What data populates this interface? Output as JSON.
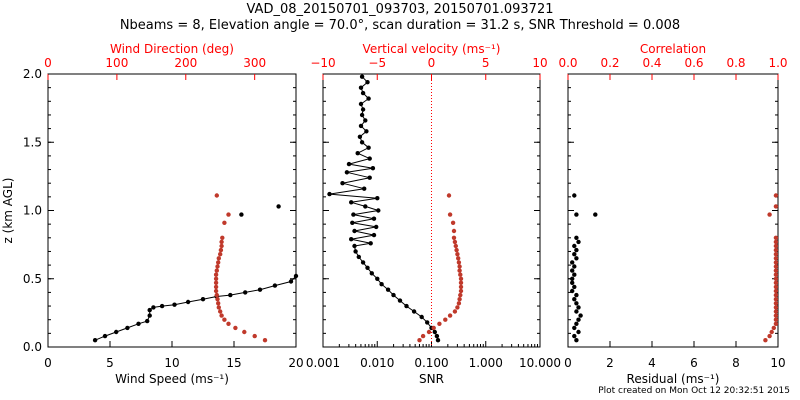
{
  "header": {
    "title_line1": "VAD_08_20150701_093703, 20150701.093721",
    "title_line2": "Nbeams = 8, Elevation angle = 70.0°, scan duration = 31.2 s, SNR Threshold = 0.008"
  },
  "footer": {
    "text": "Plot created on Mon Oct 12 20:32:51 2015"
  },
  "colors": {
    "axis": "#000000",
    "secondary_axis": "#ff0000",
    "secondary_series": "#c0392b"
  },
  "chart_data": [
    {
      "type": "scatter",
      "panel": "wind",
      "ylabel": "z (km AGL)",
      "ylim": [
        0,
        2.0
      ],
      "yticks": [
        "0.0",
        "0.5",
        "1.0",
        "1.5",
        "2.0"
      ],
      "xlabel": "Wind Speed (ms⁻¹)",
      "xlim": [
        0,
        20
      ],
      "xticks": [
        "0",
        "5",
        "10",
        "15",
        "20"
      ],
      "x2label": "Wind Direction (deg)",
      "x2lim": [
        0,
        360
      ],
      "x2ticks": [
        "0",
        "100",
        "200",
        "300"
      ],
      "series": [
        {
          "axis": "bottom",
          "line": true,
          "color": "#000000",
          "x": [
            3.8,
            4.6,
            5.5,
            6.4,
            7.3,
            8.0,
            8.2,
            8.2,
            8.5,
            9.2,
            10.2,
            11.3,
            12.5,
            13.6,
            14.7,
            15.9,
            17.1,
            18.3,
            19.6,
            20.0
          ],
          "y": [
            0.05,
            0.08,
            0.11,
            0.14,
            0.17,
            0.19,
            0.23,
            0.27,
            0.29,
            0.3,
            0.31,
            0.33,
            0.35,
            0.37,
            0.38,
            0.4,
            0.42,
            0.45,
            0.48,
            0.52
          ]
        },
        {
          "axis": "bottom",
          "line": false,
          "color": "#000000",
          "x": [
            15.6,
            18.6
          ],
          "y": [
            0.97,
            1.03
          ]
        },
        {
          "axis": "top",
          "line": false,
          "color": "#c0392b",
          "x": [
            315,
            300,
            285,
            272,
            262,
            256,
            252,
            250,
            248,
            247,
            246,
            245,
            244,
            244,
            244,
            244,
            244,
            245,
            246,
            247,
            248,
            250,
            251,
            252,
            252,
            253,
            256,
            262,
            245
          ],
          "y": [
            0.05,
            0.08,
            0.11,
            0.14,
            0.17,
            0.2,
            0.23,
            0.26,
            0.29,
            0.32,
            0.35,
            0.38,
            0.41,
            0.44,
            0.47,
            0.5,
            0.53,
            0.56,
            0.59,
            0.62,
            0.65,
            0.68,
            0.71,
            0.74,
            0.77,
            0.8,
            0.91,
            0.97,
            1.11
          ]
        }
      ]
    },
    {
      "type": "line",
      "panel": "vertical_velocity",
      "ylim": [
        0,
        2.0
      ],
      "xlabel": "SNR",
      "xscale": "log",
      "xlim": [
        0.001,
        10
      ],
      "xticks": [
        "0.001",
        "0.010",
        "0.100",
        "1.000",
        "10.000"
      ],
      "x2label": "Vertical velocity (ms⁻¹)",
      "x2lim": [
        -10,
        10
      ],
      "x2ticks": [
        "−10",
        "−5",
        "0",
        "5",
        "10"
      ],
      "reference_line": {
        "axis": "top",
        "x": 0,
        "style": "dotted",
        "color": "#ff0000"
      },
      "series": [
        {
          "axis": "top",
          "line": true,
          "color": "#000000",
          "x": [
            0.6,
            0.5,
            0.3,
            0.0,
            -0.4,
            -0.9,
            -1.6,
            -2.3,
            -2.9,
            -3.5,
            -4.0,
            -4.6,
            -5.0,
            -5.5,
            -5.9,
            -6.3,
            -6.7,
            -7.0,
            -7.1,
            -5.6,
            -7.4,
            -5.3,
            -7.1,
            -5.1,
            -7.3,
            -5.3,
            -7.2,
            -4.9,
            -6.1,
            -7.4,
            -5.0,
            -9.4,
            -6.2,
            -8.2,
            -5.7,
            -7.8,
            -5.4,
            -7.6,
            -5.7,
            -6.8,
            -5.8,
            -6.4,
            -6.6,
            -6.0,
            -6.5,
            -6.1,
            -6.4,
            -6.3,
            -6.5,
            -5.8,
            -6.3,
            -6.5,
            -5.9,
            -6.4
          ],
          "y": [
            0.05,
            0.08,
            0.11,
            0.14,
            0.18,
            0.22,
            0.26,
            0.3,
            0.34,
            0.38,
            0.42,
            0.46,
            0.5,
            0.54,
            0.58,
            0.62,
            0.66,
            0.7,
            0.74,
            0.76,
            0.79,
            0.82,
            0.85,
            0.88,
            0.91,
            0.94,
            0.97,
            1.0,
            1.03,
            1.06,
            1.09,
            1.12,
            1.16,
            1.2,
            1.24,
            1.28,
            1.31,
            1.34,
            1.38,
            1.42,
            1.46,
            1.5,
            1.54,
            1.58,
            1.62,
            1.66,
            1.7,
            1.74,
            1.78,
            1.82,
            1.86,
            1.9,
            1.94,
            1.98
          ]
        },
        {
          "axis": "bottom",
          "line": false,
          "color": "#c0392b",
          "x": [
            0.06,
            0.07,
            0.09,
            0.11,
            0.14,
            0.18,
            0.22,
            0.27,
            0.3,
            0.32,
            0.33,
            0.34,
            0.35,
            0.35,
            0.35,
            0.35,
            0.34,
            0.33,
            0.33,
            0.32,
            0.31,
            0.3,
            0.29,
            0.28,
            0.27,
            0.26,
            0.26,
            0.25,
            0.22,
            0.21
          ],
          "y": [
            0.05,
            0.08,
            0.11,
            0.14,
            0.17,
            0.2,
            0.23,
            0.26,
            0.29,
            0.32,
            0.35,
            0.38,
            0.41,
            0.44,
            0.47,
            0.5,
            0.53,
            0.56,
            0.59,
            0.62,
            0.65,
            0.68,
            0.71,
            0.74,
            0.77,
            0.8,
            0.85,
            0.91,
            0.97,
            1.11
          ]
        }
      ]
    },
    {
      "type": "scatter",
      "panel": "residual",
      "ylim": [
        0,
        2.0
      ],
      "xlabel": "Residual (ms⁻¹)",
      "xlim": [
        0,
        10
      ],
      "xticks": [
        "0",
        "2",
        "4",
        "6",
        "8",
        "10"
      ],
      "x2label": "Correlation",
      "x2lim": [
        0,
        1.0
      ],
      "x2ticks": [
        "0.0",
        "0.2",
        "0.4",
        "0.6",
        "0.8",
        "1.0"
      ],
      "series": [
        {
          "axis": "bottom",
          "line": false,
          "color": "#000000",
          "x": [
            0.4,
            0.3,
            0.5,
            0.3,
            0.4,
            0.5,
            0.6,
            0.4,
            0.5,
            0.4,
            0.3,
            0.4,
            0.2,
            0.3,
            0.2,
            0.2,
            0.3,
            0.2,
            0.3,
            0.2,
            0.4,
            0.3,
            0.4,
            0.3,
            0.5,
            0.4,
            0.4,
            1.3,
            0.3
          ],
          "y": [
            0.05,
            0.08,
            0.11,
            0.14,
            0.17,
            0.2,
            0.23,
            0.26,
            0.29,
            0.32,
            0.35,
            0.38,
            0.41,
            0.44,
            0.47,
            0.5,
            0.53,
            0.56,
            0.59,
            0.62,
            0.65,
            0.68,
            0.71,
            0.74,
            0.77,
            0.8,
            0.97,
            0.97,
            1.11
          ]
        },
        {
          "axis": "top",
          "line": false,
          "color": "#c0392b",
          "x": [
            0.94,
            0.96,
            0.97,
            0.98,
            0.99,
            0.99,
            0.99,
            0.99,
            0.99,
            0.99,
            0.99,
            0.99,
            0.99,
            0.99,
            0.99,
            0.99,
            0.99,
            0.99,
            0.99,
            0.99,
            0.99,
            0.99,
            0.99,
            0.99,
            0.99,
            0.99,
            0.96,
            0.99,
            0.99
          ],
          "y": [
            0.05,
            0.08,
            0.11,
            0.14,
            0.17,
            0.2,
            0.23,
            0.26,
            0.29,
            0.32,
            0.35,
            0.38,
            0.41,
            0.44,
            0.47,
            0.5,
            0.53,
            0.56,
            0.59,
            0.62,
            0.65,
            0.68,
            0.71,
            0.74,
            0.77,
            0.8,
            0.97,
            1.03,
            1.11
          ]
        }
      ]
    }
  ]
}
